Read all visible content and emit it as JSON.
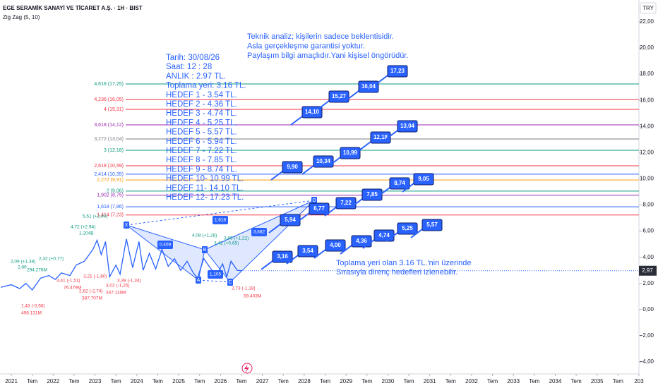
{
  "chart_data": {
    "type": "line",
    "title": "EGE SERAMİK SANAYİ VE TİCARET A.Ş. · 1H · BIST",
    "indicator": "Zig Zag (5, 10)",
    "currency": "TRY",
    "color": "#2962ff",
    "x": [
      2020.75,
      2021.0,
      2021.2,
      2021.35,
      2021.5,
      2021.7,
      2021.9,
      2022.05,
      2022.2,
      2022.4,
      2022.55,
      2022.75,
      2022.95,
      2023.05,
      2023.15,
      2023.25,
      2023.35,
      2023.5,
      2023.6,
      2023.75,
      2023.9,
      2024.05,
      2024.15,
      2024.3,
      2024.45,
      2024.6,
      2024.75,
      2024.9,
      2025.05,
      2025.2,
      2025.35,
      2025.45,
      2025.6,
      2025.75,
      2025.9,
      2026.05,
      2026.15,
      2026.25,
      2026.4,
      2026.5
    ],
    "values": [
      1.7,
      1.9,
      1.6,
      2.0,
      1.5,
      2.4,
      2.6,
      2.3,
      2.8,
      2.6,
      3.4,
      3.7,
      4.6,
      5.3,
      4.2,
      5.2,
      2.5,
      3.4,
      2.7,
      5.4,
      3.2,
      5.2,
      3.0,
      4.3,
      3.1,
      4.6,
      3.3,
      3.9,
      3.0,
      3.7,
      2.8,
      2.4,
      3.9,
      3.2,
      2.6,
      3.5,
      2.5,
      3.7,
      3.0,
      2.97
    ],
    "last_price": {
      "value": 2.97,
      "label": "2,97"
    },
    "xlim": [
      2020.73,
      2036
    ],
    "ylim": [
      -4.92,
      23.67
    ],
    "xticks": [
      2021,
      {
        "value": 2021.5,
        "label": "Tem"
      },
      2022,
      {
        "value": 2022.5,
        "label": "Tem"
      },
      2023,
      {
        "value": 2023.5,
        "label": "Tem"
      },
      2024,
      {
        "value": 2024.5,
        "label": "Tem"
      },
      2025,
      {
        "value": 2025.5,
        "label": "Tem"
      },
      2026,
      {
        "value": 2026.5,
        "label": "Tem"
      },
      2027,
      {
        "value": 2027.5,
        "label": "Tem"
      },
      2028,
      {
        "value": 2028.5,
        "label": "Tem"
      },
      2029,
      {
        "value": 2029.5,
        "label": "Tem"
      },
      2030,
      {
        "value": 2030.5,
        "label": "Tem"
      },
      2031,
      {
        "value": 2031.5,
        "label": "Tem"
      },
      2032,
      {
        "value": 2032.5,
        "label": "Tem"
      },
      2033,
      {
        "value": 2033.5,
        "label": "Tem"
      },
      2034,
      {
        "value": 2034.5,
        "label": "Tem"
      },
      2035,
      {
        "value": 2035.5,
        "label": "Tem"
      },
      {
        "value": 2036,
        "label": "203"
      }
    ],
    "yticks": [
      {
        "value": 22,
        "label": "22,00"
      },
      {
        "value": 20,
        "label": "20,00"
      },
      {
        "value": 18,
        "label": "18,00"
      },
      {
        "value": 16,
        "label": "16,00"
      },
      {
        "value": 14,
        "label": "14,00"
      },
      {
        "value": 12,
        "label": "12,00"
      },
      {
        "value": 10,
        "label": "10,00"
      },
      {
        "value": 8,
        "label": "8,00"
      },
      {
        "value": 6,
        "label": "6,00"
      },
      {
        "value": 4,
        "label": "4,00"
      },
      {
        "value": 2,
        "label": "2,00"
      },
      {
        "value": 0,
        "label": "0,00"
      },
      {
        "value": -2,
        "label": "−2,00"
      },
      {
        "value": -4,
        "label": "−4,00"
      }
    ],
    "levels": [
      {
        "value": 17.25,
        "label": "4,618 (17,25)",
        "color": "#089981"
      },
      {
        "value": 16.05,
        "label": "4,236 (16,05)",
        "color": "#f23645"
      },
      {
        "value": 15.31,
        "label": "4 (15,31)",
        "color": "#f23645"
      },
      {
        "value": 14.12,
        "label": "3,618 (14,12)",
        "color": "#9c27b0"
      },
      {
        "value": 13.04,
        "label": "3,272 (13,04)",
        "color": "#787b86"
      },
      {
        "value": 12.18,
        "label": "3 (12,18)",
        "color": "#089981"
      },
      {
        "value": 10.99,
        "label": "2,618 (10,99)",
        "color": "#f23645"
      },
      {
        "value": 10.35,
        "label": "2,414 (10,35)",
        "color": "#2962ff"
      },
      {
        "value": 9.91,
        "label": "2,272 (9,91)",
        "color": "#ff9800"
      },
      {
        "value": 9.06,
        "label": "2 (9,06)",
        "color": "#089981"
      },
      {
        "value": 8.75,
        "label": "1,902 (8,75)",
        "color": "#9c27b0"
      },
      {
        "value": 7.86,
        "label": "1,618 (7,86)",
        "color": "#2962ff"
      },
      {
        "value": 7.23,
        "label": "1,414 (7,23)",
        "color": "#f23645"
      }
    ],
    "info_lines": [
      "Tarih:   30/08/26",
      "Saat:     12 : 28",
      "ANLIK :  2.97 TL.",
      "Toplama yeri: 3.16 TL.",
      "HEDEF 1 - 3.54 TL.",
      "HEDEF 2 - 4.36 TL.",
      "HEDEF 3 - 4.74 TL.",
      "HEDEF 4 - 5.25 TL.",
      "HEDEF 5 - 5.57 TL.",
      "HEDEF 6 - 5.94 TL.",
      "HEDEF 7 - 7.22 TL.",
      "HEDEF 8 - 7.85 TL.",
      "HEDEF 9 - 8.74 TL.",
      "HEDEF 10- 10.99 TL.",
      "HEDEF 11- 14.10 TL.",
      "HEDEF 12- 17.23 TL."
    ],
    "disclaimer": [
      "Teknik analiz; kişilerin sadece beklentisidir.",
      "Asla gerçekleşme garantisi yoktur.",
      "Paylaşım bilgi amaçlıdır.Yani kişisel öngörüdür."
    ],
    "footnote": [
      "Toplama yeri olan 3.16 TL.'nin üzerinde",
      "Sırasıyla direnç hedefleri izlenebilir."
    ],
    "targets": [
      "3,16",
      "3,54",
      "4,00",
      "4,36",
      "4,74",
      "5,25",
      "5,57",
      "5,94",
      "6,77",
      "7,22",
      "7,85",
      "8,74",
      "9,05",
      "9,90",
      "10,34",
      "10,99",
      "12,18",
      "13,04",
      "14,10",
      "15,27",
      "16,04",
      "17,23"
    ],
    "pattern_points": [
      "X",
      "A",
      "B",
      "C",
      "D"
    ],
    "pattern_ratios": [
      "1,618",
      "0.409",
      "3,682",
      "1,105"
    ],
    "zigzag_labels": [
      {
        "text": "2,09 (+1,38)",
        "color": "#089981"
      },
      {
        "text": "2,32 (+0,77)",
        "color": "#089981"
      },
      {
        "text": "2,80",
        "color": "#089981"
      },
      {
        "text": "294.278M",
        "color": "#089981"
      },
      {
        "text": "1,43 (-0,56)",
        "color": "#f23645"
      },
      {
        "text": "498.131M",
        "color": "#f23645"
      },
      {
        "text": "4,72 (+2,94)",
        "color": "#089981"
      },
      {
        "text": "1.204B",
        "color": "#089981"
      },
      {
        "text": "5,51 (+2,40)",
        "color": "#089981"
      },
      {
        "text": "3,21 (-1,80)",
        "color": "#f23645"
      },
      {
        "text": "3,41 (-1,51)",
        "color": "#f23645"
      },
      {
        "text": "76.479M",
        "color": "#f23645"
      },
      {
        "text": "2,62 (-2,74)",
        "color": "#f23645"
      },
      {
        "text": "387.707M",
        "color": "#f23645"
      },
      {
        "text": "3,02 (-1,25)",
        "color": "#f23645"
      },
      {
        "text": "347.116M",
        "color": "#f23645"
      },
      {
        "text": "3,39 (-1,34)",
        "color": "#f23645"
      },
      {
        "text": "4,08 (+1,28)",
        "color": "#089981"
      },
      {
        "text": "3,89 (+1,22)",
        "color": "#089981"
      },
      {
        "text": "3,42 (+0,65)",
        "color": "#089981"
      },
      {
        "text": "2,73 (-1,18)",
        "color": "#f23645"
      },
      {
        "text": "59.403M",
        "color": "#f23645"
      }
    ]
  }
}
